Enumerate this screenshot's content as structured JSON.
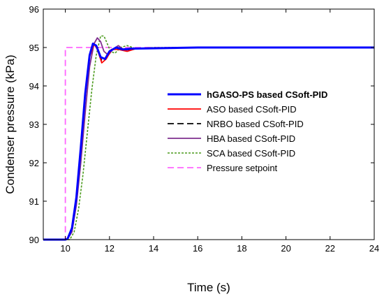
{
  "chart_data": {
    "type": "line",
    "xlabel": "Time (s)",
    "ylabel": "Condenser pressure (kPa)",
    "xlim": [
      9,
      24
    ],
    "ylim": [
      90,
      96
    ],
    "xticks": [
      10,
      12,
      14,
      16,
      18,
      20,
      22,
      24
    ],
    "yticks": [
      90,
      91,
      92,
      93,
      94,
      95,
      96
    ],
    "x_tick_labels": [
      "10",
      "12",
      "14",
      "16",
      "18",
      "20",
      "22",
      "24"
    ],
    "y_tick_labels": [
      "90",
      "91",
      "92",
      "93",
      "94",
      "95",
      "96"
    ],
    "grid": false,
    "legend_position": "right-center",
    "series": [
      {
        "name": "hGASO-PS based CSoft-PID",
        "color": "#0000ff",
        "style": "solid",
        "bold": true,
        "points": [
          [
            9,
            90
          ],
          [
            10,
            90
          ],
          [
            10.1,
            90.02
          ],
          [
            10.3,
            90.3
          ],
          [
            10.5,
            91.1
          ],
          [
            10.7,
            92.4
          ],
          [
            10.9,
            93.8
          ],
          [
            11.1,
            94.8
          ],
          [
            11.25,
            95.1
          ],
          [
            11.4,
            95.05
          ],
          [
            11.6,
            94.75
          ],
          [
            11.8,
            94.7
          ],
          [
            12.0,
            94.9
          ],
          [
            12.3,
            95.0
          ],
          [
            12.6,
            94.95
          ],
          [
            13.0,
            94.97
          ],
          [
            14,
            94.98
          ],
          [
            16,
            95.0
          ],
          [
            24,
            95.0
          ]
        ]
      },
      {
        "name": "ASO based CSoft-PID",
        "color": "#ff0000",
        "style": "solid",
        "bold": false,
        "points": [
          [
            9,
            90
          ],
          [
            10,
            90
          ],
          [
            10.1,
            90.02
          ],
          [
            10.3,
            90.3
          ],
          [
            10.5,
            91.1
          ],
          [
            10.7,
            92.3
          ],
          [
            10.9,
            93.7
          ],
          [
            11.1,
            94.75
          ],
          [
            11.3,
            95.1
          ],
          [
            11.45,
            94.95
          ],
          [
            11.65,
            94.6
          ],
          [
            11.85,
            94.7
          ],
          [
            12.1,
            94.95
          ],
          [
            12.4,
            94.95
          ],
          [
            12.8,
            94.9
          ],
          [
            13.2,
            94.97
          ],
          [
            14,
            94.98
          ],
          [
            16,
            95.0
          ],
          [
            24,
            95.0
          ]
        ]
      },
      {
        "name": "NRBO based CSoft-PID",
        "color": "#000000",
        "style": "dashed",
        "bold": false,
        "points": [
          [
            9,
            90
          ],
          [
            10,
            90
          ],
          [
            10.1,
            90.02
          ],
          [
            10.3,
            90.3
          ],
          [
            10.5,
            91.1
          ],
          [
            10.7,
            92.4
          ],
          [
            10.9,
            93.8
          ],
          [
            11.1,
            94.8
          ],
          [
            11.3,
            95.1
          ],
          [
            11.45,
            95.0
          ],
          [
            11.65,
            94.65
          ],
          [
            11.85,
            94.72
          ],
          [
            12.1,
            94.95
          ],
          [
            12.4,
            94.96
          ],
          [
            12.8,
            94.92
          ],
          [
            13.2,
            94.97
          ],
          [
            14,
            94.98
          ],
          [
            16,
            95.0
          ],
          [
            24,
            95.0
          ]
        ]
      },
      {
        "name": "HBA based CSoft-PID",
        "color": "#7e2f8e",
        "style": "solid",
        "bold": false,
        "points": [
          [
            9,
            90
          ],
          [
            10,
            90
          ],
          [
            10.1,
            90.02
          ],
          [
            10.3,
            90.2
          ],
          [
            10.5,
            90.9
          ],
          [
            10.7,
            92.0
          ],
          [
            10.9,
            93.3
          ],
          [
            11.1,
            94.5
          ],
          [
            11.3,
            95.1
          ],
          [
            11.45,
            95.25
          ],
          [
            11.6,
            95.15
          ],
          [
            11.75,
            94.9
          ],
          [
            11.95,
            94.8
          ],
          [
            12.15,
            94.95
          ],
          [
            12.4,
            95.05
          ],
          [
            12.7,
            94.92
          ],
          [
            13.1,
            94.98
          ],
          [
            14,
            94.99
          ],
          [
            16,
            95.0
          ],
          [
            24,
            95.0
          ]
        ]
      },
      {
        "name": "SCA based CSoft-PID",
        "color": "#4a9a1b",
        "style": "dotted",
        "bold": false,
        "points": [
          [
            9,
            90
          ],
          [
            10.2,
            90
          ],
          [
            10.4,
            90.2
          ],
          [
            10.6,
            90.8
          ],
          [
            10.8,
            91.7
          ],
          [
            11.0,
            92.8
          ],
          [
            11.2,
            93.9
          ],
          [
            11.4,
            94.8
          ],
          [
            11.6,
            95.3
          ],
          [
            11.75,
            95.3
          ],
          [
            11.9,
            95.1
          ],
          [
            12.05,
            94.9
          ],
          [
            12.25,
            94.85
          ],
          [
            12.5,
            95.0
          ],
          [
            12.8,
            95.05
          ],
          [
            13.2,
            94.97
          ],
          [
            14,
            95.0
          ],
          [
            16,
            95.0
          ],
          [
            24,
            95.0
          ]
        ]
      },
      {
        "name": "Pressure setpoint",
        "color": "#ff66ff",
        "style": "dashed",
        "bold": false,
        "points": [
          [
            9,
            90
          ],
          [
            10,
            90
          ],
          [
            10,
            95
          ],
          [
            24,
            95
          ]
        ]
      }
    ]
  }
}
